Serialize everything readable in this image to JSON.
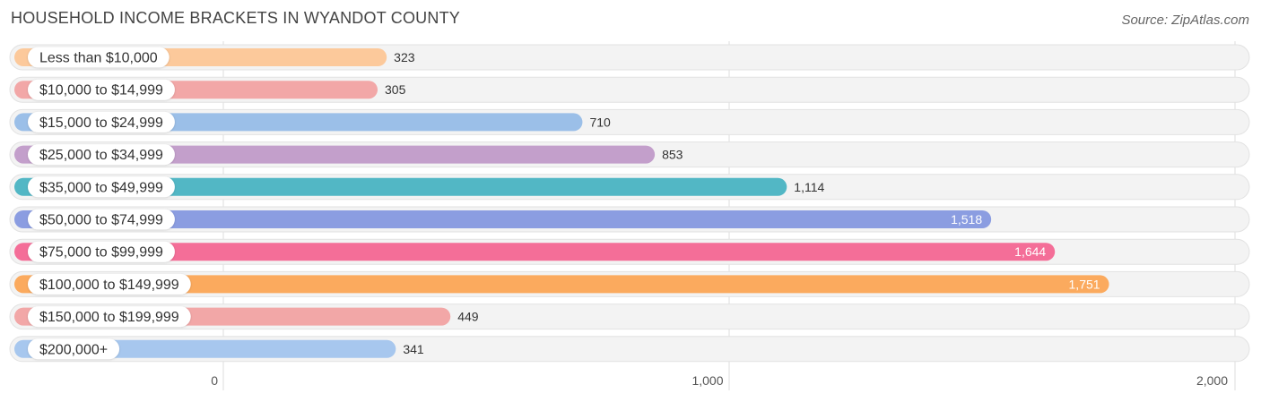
{
  "header": {
    "title": "HOUSEHOLD INCOME BRACKETS IN WYANDOT COUNTY",
    "source": "Source: ZipAtlas.com"
  },
  "chart_data": {
    "type": "bar",
    "orientation": "horizontal",
    "title": "HOUSEHOLD INCOME BRACKETS IN WYANDOT COUNTY",
    "categories": [
      "Less than $10,000",
      "$10,000 to $14,999",
      "$15,000 to $24,999",
      "$25,000 to $34,999",
      "$35,000 to $49,999",
      "$50,000 to $74,999",
      "$75,000 to $99,999",
      "$100,000 to $149,999",
      "$150,000 to $199,999",
      "$200,000+"
    ],
    "values": [
      323,
      305,
      710,
      853,
      1114,
      1518,
      1644,
      1751,
      449,
      341
    ],
    "value_labels": [
      "323",
      "305",
      "710",
      "853",
      "1,114",
      "1,518",
      "1,644",
      "1,751",
      "449",
      "341"
    ],
    "colors": [
      "#fcc99b",
      "#f2a7a7",
      "#9bbfe8",
      "#c39fcb",
      "#52b7c5",
      "#8b9de1",
      "#f46e98",
      "#fbaa5e",
      "#f2a7a7",
      "#a7c7ee"
    ],
    "xlim": [
      0,
      2000
    ],
    "xticks": [
      0,
      1000,
      2000
    ],
    "xtick_labels": [
      "0",
      "1,000",
      "2,000"
    ],
    "xlabel": "",
    "ylabel": "",
    "grid": true
  }
}
